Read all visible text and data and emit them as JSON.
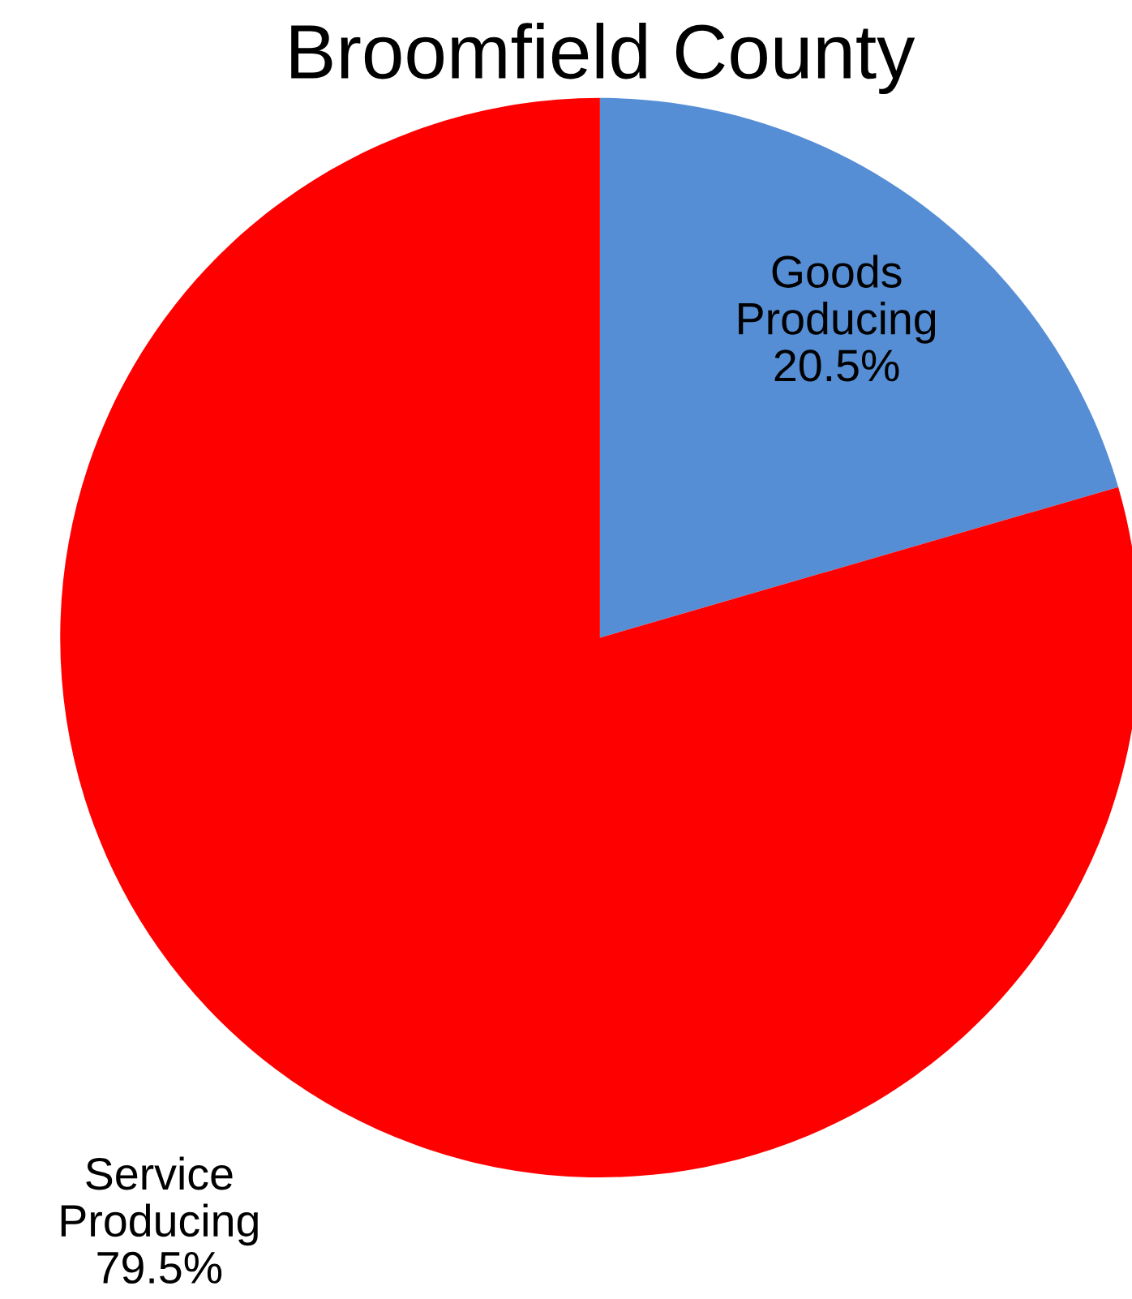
{
  "chart_data": {
    "type": "pie",
    "title": "Broomfield County",
    "categories": [
      "Goods\nProducing",
      "Service\nProducing"
    ],
    "values": [
      20.5,
      79.5
    ],
    "value_labels": [
      "20.5%",
      "79.5%"
    ],
    "colors": [
      "#558ed5",
      "#ff0000"
    ]
  }
}
